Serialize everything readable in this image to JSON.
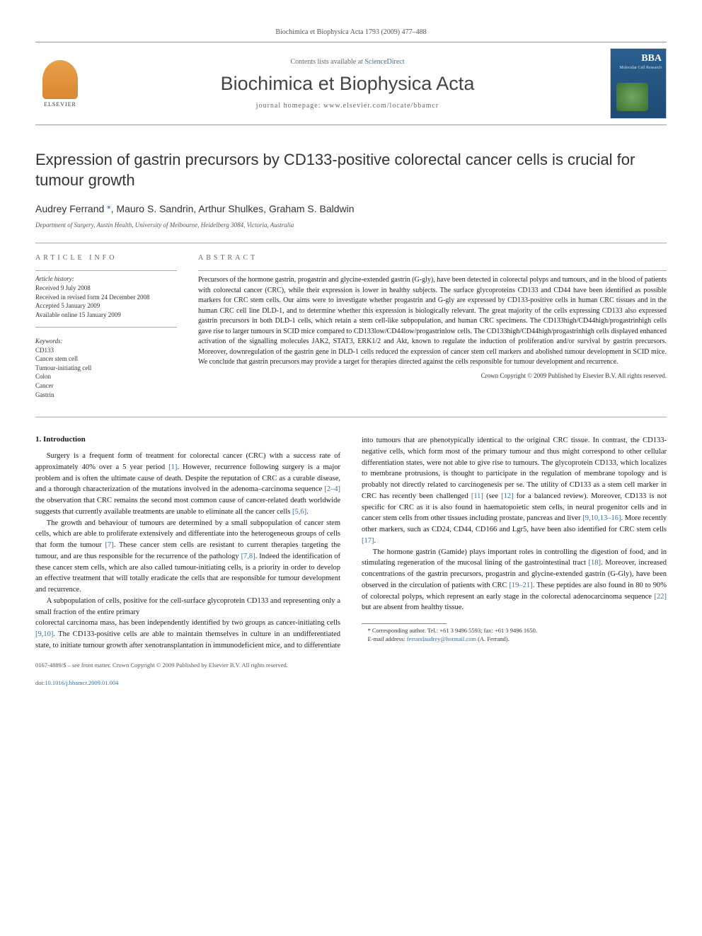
{
  "header": {
    "citation": "Biochimica et Biophysica Acta 1793 (2009) 477–488",
    "contents_prefix": "Contents lists available at ",
    "contents_link": "ScienceDirect",
    "journal_title": "Biochimica et Biophysica Acta",
    "homepage_prefix": "journal homepage: ",
    "homepage_url": "www.elsevier.com/locate/bbamcr",
    "publisher": "ELSEVIER",
    "cover_abbrev": "BBA",
    "cover_subtitle": "Molecular Cell Research"
  },
  "article": {
    "title": "Expression of gastrin precursors by CD133-positive colorectal cancer cells is crucial for tumour growth",
    "authors": "Audrey Ferrand ",
    "authors_rest": ", Mauro S. Sandrin, Arthur Shulkes, Graham S. Baldwin",
    "corr_mark": "*",
    "affiliation": "Department of Surgery, Austin Health, University of Melbourne, Heidelberg 3084, Victoria, Australia"
  },
  "info": {
    "label": "ARTICLE INFO",
    "history_label": "Article history:",
    "history": [
      "Received 9 July 2008",
      "Received in revised form 24 December 2008",
      "Accepted 5 January 2009",
      "Available online 15 January 2009"
    ],
    "keywords_label": "Keywords:",
    "keywords": [
      "CD133",
      "Cancer stem cell",
      "Tumour-initiating cell",
      "Colon",
      "Cancer",
      "Gastrin"
    ]
  },
  "abstract": {
    "label": "ABSTRACT",
    "text": "Precursors of the hormone gastrin, progastrin and glycine-extended gastrin (G-gly), have been detected in colorectal polyps and tumours, and in the blood of patients with colorectal cancer (CRC), while their expression is lower in healthy subjects. The surface glycoproteins CD133 and CD44 have been identified as possible markers for CRC stem cells. Our aims were to investigate whether progastrin and G-gly are expressed by CD133-positive cells in human CRC tissues and in the human CRC cell line DLD-1, and to determine whether this expression is biologically relevant. The great majority of the cells expressing CD133 also expressed gastrin precursors in both DLD-1 cells, which retain a stem cell-like subpopulation, and human CRC specimens. The CD133high/CD44high/progastrinhigh cells gave rise to larger tumours in SCID mice compared to CD133low/CD44low/progastrinlow cells. The CD133high/CD44high/progastrinhigh cells displayed enhanced activation of the signalling molecules JAK2, STAT3, ERK1/2 and Akt, known to regulate the induction of proliferation and/or survival by gastrin precursors. Moreover, downregulation of the gastrin gene in DLD-1 cells reduced the expression of cancer stem cell markers and abolished tumour development in SCID mice. We conclude that gastrin precursors may provide a target for therapies directed against the cells responsible for tumour development and recurrence.",
    "copyright": "Crown Copyright © 2009 Published by Elsevier B.V. All rights reserved."
  },
  "body": {
    "intro_heading": "1. Introduction",
    "p1a": "Surgery is a frequent form of treatment for colorectal cancer (CRC) with a success rate of approximately 40% over a 5 year period ",
    "ref1": "[1]",
    "p1b": ". However, recurrence following surgery is a major problem and is often the ultimate cause of death. Despite the reputation of CRC as a curable disease, and a thorough characterization of the mutations involved in the adenoma–carcinoma sequence ",
    "ref2_4": "[2–4]",
    "p1c": " the observation that CRC remains the second most common cause of cancer-related death worldwide suggests that currently available treatments are unable to eliminate all the cancer cells ",
    "ref5_6": "[5,6]",
    "p1d": ".",
    "p2a": "The growth and behaviour of tumours are determined by a small subpopulation of cancer stem cells, which are able to proliferate extensively and differentiate into the heterogeneous groups of cells that form the tumour ",
    "ref7": "[7]",
    "p2b": ". These cancer stem cells are resistant to current therapies targeting the tumour, and are thus responsible for the recurrence of the pathology ",
    "ref7_8": "[7,8]",
    "p2c": ". Indeed the identification of these cancer stem cells, which are also called tumour-initiating cells, is a priority in order to develop an effective treatment that will totally eradicate the cells that are responsible for tumour development and recurrence.",
    "p3": "A subpopulation of cells, positive for the cell-surface glycoprotein CD133 and representing only a small fraction of the entire primary",
    "p4a": "colorectal carcinoma mass, has been independently identified by two groups as cancer-initiating cells ",
    "ref9_10": "[9,10]",
    "p4b": ". The CD133-positive cells are able to maintain themselves in culture in an undifferentiated state, to initiate tumour growth after xenotransplantation in immunodeficient mice, and to differentiate into tumours that are phenotypically identical to the original CRC tissue. In contrast, the CD133-negative cells, which form most of the primary tumour and thus might correspond to other cellular differentiation states, were not able to give rise to tumours. The glycoprotein CD133, which localizes to membrane protrusions, is thought to participate in the regulation of membrane topology and is probably not directly related to carcinogenesis per se. The utility of CD133 as a stem cell marker in CRC has recently been challenged ",
    "ref11": "[11]",
    "p4c": " (see ",
    "ref12": "[12]",
    "p4d": " for a balanced review). Moreover, CD133 is not specific for CRC as it is also found in haematopoietic stem cells, in neural progenitor cells and in cancer stem cells from other tissues including prostate, pancreas and liver ",
    "ref9_16": "[9,10,13–16]",
    "p4e": ". More recently other markers, such as CD24, CD44, CD166 and Lgr5, have been also identified for CRC stem cells ",
    "ref17": "[17]",
    "p4f": ".",
    "p5a": "The hormone gastrin (Gamide) plays important roles in controlling the digestion of food, and in stimulating regeneration of the mucosal lining of the gastrointestinal tract ",
    "ref18": "[18]",
    "p5b": ". Moreover, increased concentrations of the gastrin precursors, progastrin and glycine-extended gastrin (G-Gly), have been observed in the circulation of patients with CRC ",
    "ref19_21": "[19–21]",
    "p5c": ". These peptides are also found in 80 to 90% of colorectal polyps, which represent an early stage in the colorectal adenocarcinoma sequence ",
    "ref22": "[22]",
    "p5d": " but are absent from healthy tissue."
  },
  "footnote": {
    "corr": "* Corresponding author. Tel.: +61 3 9496 5593; fax: +61 3 9496 1650.",
    "email_label": "E-mail address: ",
    "email": "ferrandaudrey@hotmail.com",
    "email_suffix": " (A. Ferrand)."
  },
  "footer": {
    "issn": "0167-4889/$ – see front matter. Crown Copyright © 2009 Published by Elsevier B.V. All rights reserved.",
    "doi_label": "doi:",
    "doi": "10.1016/j.bbamcr.2009.01.004"
  }
}
